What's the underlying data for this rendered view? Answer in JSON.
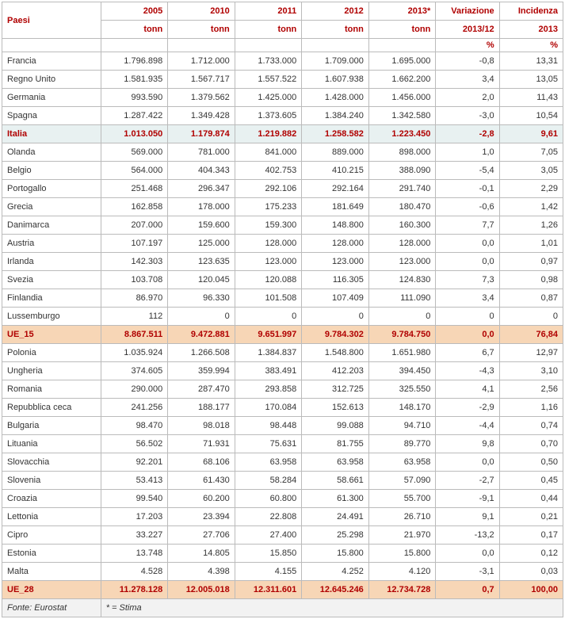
{
  "header": {
    "paesi": "Paesi",
    "years": [
      "2005",
      "2010",
      "2011",
      "2012",
      "2013*"
    ],
    "unit": "tonn",
    "variazione": "Variazione",
    "variazione_sub": "2013/12",
    "variazione_unit": "%",
    "incidenza": "Incidenza",
    "incidenza_sub": "2013",
    "incidenza_unit": "%"
  },
  "rows_a": [
    {
      "name": "Francia",
      "v": [
        "1.796.898",
        "1.712.000",
        "1.733.000",
        "1.709.000",
        "1.695.000"
      ],
      "var": "-0,8",
      "inc": "13,31",
      "hl": false
    },
    {
      "name": "Regno Unito",
      "v": [
        "1.581.935",
        "1.567.717",
        "1.557.522",
        "1.607.938",
        "1.662.200"
      ],
      "var": "3,4",
      "inc": "13,05",
      "hl": false
    },
    {
      "name": "Germania",
      "v": [
        "993.590",
        "1.379.562",
        "1.425.000",
        "1.428.000",
        "1.456.000"
      ],
      "var": "2,0",
      "inc": "11,43",
      "hl": false
    },
    {
      "name": "Spagna",
      "v": [
        "1.287.422",
        "1.349.428",
        "1.373.605",
        "1.384.240",
        "1.342.580"
      ],
      "var": "-3,0",
      "inc": "10,54",
      "hl": false
    },
    {
      "name": "Italia",
      "v": [
        "1.013.050",
        "1.179.874",
        "1.219.882",
        "1.258.582",
        "1.223.450"
      ],
      "var": "-2,8",
      "inc": "9,61",
      "hl": true
    },
    {
      "name": "Olanda",
      "v": [
        "569.000",
        "781.000",
        "841.000",
        "889.000",
        "898.000"
      ],
      "var": "1,0",
      "inc": "7,05",
      "hl": false
    },
    {
      "name": "Belgio",
      "v": [
        "564.000",
        "404.343",
        "402.753",
        "410.215",
        "388.090"
      ],
      "var": "-5,4",
      "inc": "3,05",
      "hl": false
    },
    {
      "name": "Portogallo",
      "v": [
        "251.468",
        "296.347",
        "292.106",
        "292.164",
        "291.740"
      ],
      "var": "-0,1",
      "inc": "2,29",
      "hl": false
    },
    {
      "name": "Grecia",
      "v": [
        "162.858",
        "178.000",
        "175.233",
        "181.649",
        "180.470"
      ],
      "var": "-0,6",
      "inc": "1,42",
      "hl": false
    },
    {
      "name": "Danimarca",
      "v": [
        "207.000",
        "159.600",
        "159.300",
        "148.800",
        "160.300"
      ],
      "var": "7,7",
      "inc": "1,26",
      "hl": false
    },
    {
      "name": "Austria",
      "v": [
        "107.197",
        "125.000",
        "128.000",
        "128.000",
        "128.000"
      ],
      "var": "0,0",
      "inc": "1,01",
      "hl": false
    },
    {
      "name": "Irlanda",
      "v": [
        "142.303",
        "123.635",
        "123.000",
        "123.000",
        "123.000"
      ],
      "var": "0,0",
      "inc": "0,97",
      "hl": false
    },
    {
      "name": "Svezia",
      "v": [
        "103.708",
        "120.045",
        "120.088",
        "116.305",
        "124.830"
      ],
      "var": "7,3",
      "inc": "0,98",
      "hl": false
    },
    {
      "name": "Finlandia",
      "v": [
        "86.970",
        "96.330",
        "101.508",
        "107.409",
        "111.090"
      ],
      "var": "3,4",
      "inc": "0,87",
      "hl": false
    },
    {
      "name": "Lussemburgo",
      "v": [
        "112",
        "0",
        "0",
        "0",
        "0"
      ],
      "var": "0",
      "inc": "0",
      "hl": false
    }
  ],
  "total_a": {
    "name": "UE_15",
    "v": [
      "8.867.511",
      "9.472.881",
      "9.651.997",
      "9.784.302",
      "9.784.750"
    ],
    "var": "0,0",
    "inc": "76,84"
  },
  "rows_b": [
    {
      "name": "Polonia",
      "v": [
        "1.035.924",
        "1.266.508",
        "1.384.837",
        "1.548.800",
        "1.651.980"
      ],
      "var": "6,7",
      "inc": "12,97",
      "hl": false
    },
    {
      "name": "Ungheria",
      "v": [
        "374.605",
        "359.994",
        "383.491",
        "412.203",
        "394.450"
      ],
      "var": "-4,3",
      "inc": "3,10",
      "hl": false
    },
    {
      "name": "Romania",
      "v": [
        "290.000",
        "287.470",
        "293.858",
        "312.725",
        "325.550"
      ],
      "var": "4,1",
      "inc": "2,56",
      "hl": false
    },
    {
      "name": "Repubblica ceca",
      "v": [
        "241.256",
        "188.177",
        "170.084",
        "152.613",
        "148.170"
      ],
      "var": "-2,9",
      "inc": "1,16",
      "hl": false
    },
    {
      "name": "Bulgaria",
      "v": [
        "98.470",
        "98.018",
        "98.448",
        "99.088",
        "94.710"
      ],
      "var": "-4,4",
      "inc": "0,74",
      "hl": false
    },
    {
      "name": "Lituania",
      "v": [
        "56.502",
        "71.931",
        "75.631",
        "81.755",
        "89.770"
      ],
      "var": "9,8",
      "inc": "0,70",
      "hl": false
    },
    {
      "name": "Slovacchia",
      "v": [
        "92.201",
        "68.106",
        "63.958",
        "63.958",
        "63.958"
      ],
      "var": "0,0",
      "inc": "0,50",
      "hl": false
    },
    {
      "name": "Slovenia",
      "v": [
        "53.413",
        "61.430",
        "58.284",
        "58.661",
        "57.090"
      ],
      "var": "-2,7",
      "inc": "0,45",
      "hl": false
    },
    {
      "name": "Croazia",
      "v": [
        "99.540",
        "60.200",
        "60.800",
        "61.300",
        "55.700"
      ],
      "var": "-9,1",
      "inc": "0,44",
      "hl": false
    },
    {
      "name": "Lettonia",
      "v": [
        "17.203",
        "23.394",
        "22.808",
        "24.491",
        "26.710"
      ],
      "var": "9,1",
      "inc": "0,21",
      "hl": false
    },
    {
      "name": "Cipro",
      "v": [
        "33.227",
        "27.706",
        "27.400",
        "25.298",
        "21.970"
      ],
      "var": "-13,2",
      "inc": "0,17",
      "hl": false
    },
    {
      "name": "Estonia",
      "v": [
        "13.748",
        "14.805",
        "15.850",
        "15.800",
        "15.800"
      ],
      "var": "0,0",
      "inc": "0,12",
      "hl": false
    },
    {
      "name": "Malta",
      "v": [
        "4.528",
        "4.398",
        "4.155",
        "4.252",
        "4.120"
      ],
      "var": "-3,1",
      "inc": "0,03",
      "hl": false
    }
  ],
  "total_b": {
    "name": "UE_28",
    "v": [
      "11.278.128",
      "12.005.018",
      "12.311.601",
      "12.645.246",
      "12.734.728"
    ],
    "var": "0,7",
    "inc": "100,00"
  },
  "footer": {
    "source": "Fonte: Eurostat",
    "note": "* = Stima"
  }
}
